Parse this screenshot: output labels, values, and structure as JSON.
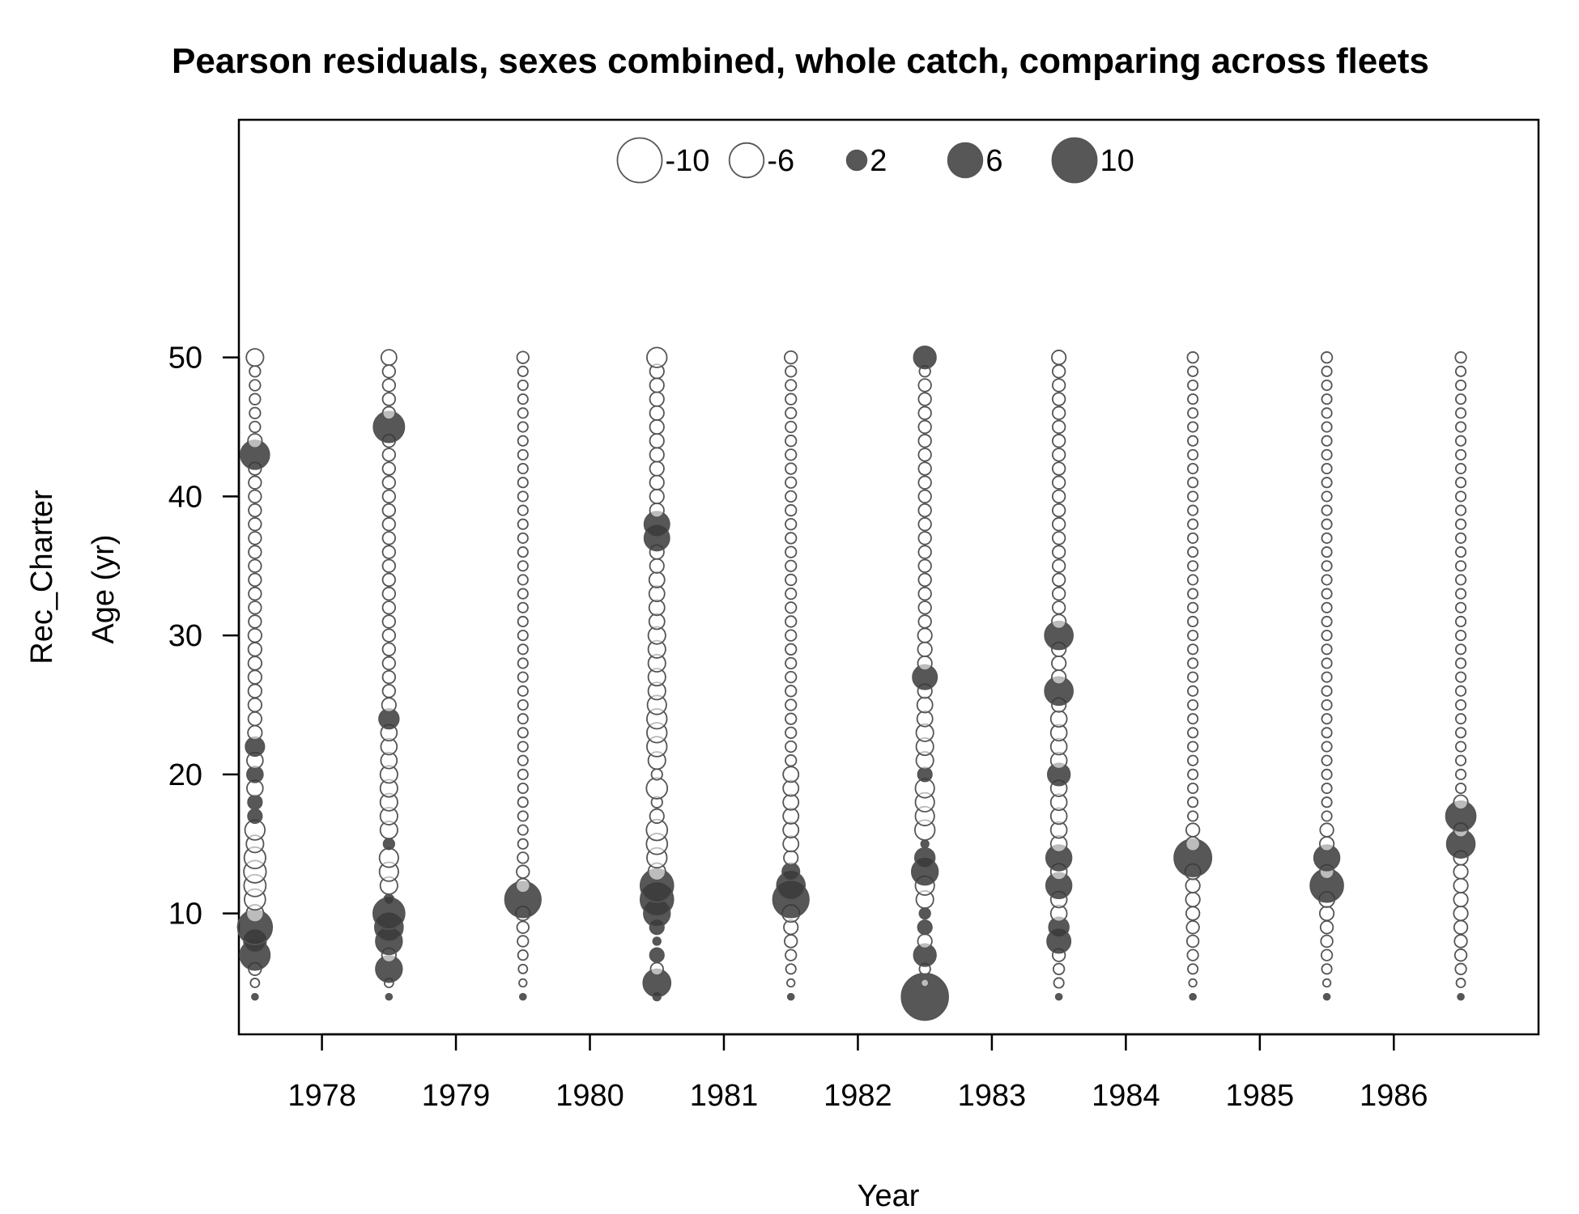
{
  "chart_data": {
    "type": "scatter",
    "subtype": "bubble",
    "title": "Pearson residuals, sexes combined, whole catch, comparing across fleets",
    "xlabel": "Year",
    "ylabel": "Age (yr)",
    "fleet_label": "Rec_Charter",
    "x_ticks": [
      "1978",
      "1979",
      "1980",
      "1981",
      "1982",
      "1983",
      "1984",
      "1985",
      "1986"
    ],
    "y_ticks": [
      "10",
      "20",
      "30",
      "40",
      "50"
    ],
    "xlim": [
      1977.38,
      1987.08
    ],
    "ylim": [
      1.3,
      67.1
    ],
    "grid": false,
    "legend": {
      "placement": "top-center",
      "entries": [
        {
          "value": -10,
          "label": "-10"
        },
        {
          "value": -6,
          "label": "-6"
        },
        {
          "value": 2,
          "label": "2"
        },
        {
          "value": 6,
          "label": "6"
        },
        {
          "value": 10,
          "label": "10"
        }
      ]
    },
    "colors": {
      "positive_fill": "#3a3a3a",
      "positive_alpha": 0.85,
      "negative_fill": "#ffffff",
      "stroke": "#555555"
    },
    "x": [
      1977.5,
      1978.5,
      1979.5,
      1980.5,
      1981.5,
      1982.5,
      1983.5,
      1984.5,
      1985.5,
      1986.5
    ],
    "ages": [
      4,
      50
    ],
    "residuals": [
      {
        "year": 1977.5,
        "default": -0.6,
        "points": [
          [
            4,
            0.2
          ],
          [
            5,
            -0.4
          ],
          [
            6,
            -0.8
          ],
          [
            7,
            4.5
          ],
          [
            8,
            2.5
          ],
          [
            9,
            6.0
          ],
          [
            10,
            -1.5
          ],
          [
            11,
            -2.2
          ],
          [
            12,
            -2.4
          ],
          [
            13,
            -2.5
          ],
          [
            14,
            -2.3
          ],
          [
            15,
            -1.5
          ],
          [
            16,
            -2.0
          ],
          [
            17,
            1.0
          ],
          [
            18,
            1.0
          ],
          [
            19,
            -1.3
          ],
          [
            20,
            1.3
          ],
          [
            21,
            -1.3
          ],
          [
            22,
            1.8
          ],
          [
            23,
            -1.0
          ],
          [
            24,
            -0.9
          ],
          [
            25,
            -0.9
          ],
          [
            26,
            -0.9
          ],
          [
            27,
            -0.9
          ],
          [
            28,
            -0.9
          ],
          [
            29,
            -0.9
          ],
          [
            30,
            -0.9
          ],
          [
            31,
            -0.8
          ],
          [
            32,
            -0.8
          ],
          [
            33,
            -0.8
          ],
          [
            34,
            -0.8
          ],
          [
            35,
            -0.8
          ],
          [
            36,
            -0.8
          ],
          [
            37,
            -0.8
          ],
          [
            38,
            -0.8
          ],
          [
            39,
            -0.8
          ],
          [
            40,
            -0.8
          ],
          [
            41,
            -0.8
          ],
          [
            42,
            -0.8
          ],
          [
            43,
            4.2
          ],
          [
            44,
            -1.0
          ],
          [
            50,
            -1.5
          ]
        ]
      },
      {
        "year": 1978.5,
        "default": -0.8,
        "points": [
          [
            4,
            0.2
          ],
          [
            5,
            -0.4
          ],
          [
            6,
            3.5
          ],
          [
            7,
            -1.0
          ],
          [
            8,
            3.5
          ],
          [
            9,
            4.0
          ],
          [
            10,
            5.0
          ],
          [
            11,
            0.5
          ],
          [
            12,
            -1.5
          ],
          [
            13,
            -1.8
          ],
          [
            14,
            -1.8
          ],
          [
            15,
            0.6
          ],
          [
            16,
            -1.5
          ],
          [
            17,
            -1.5
          ],
          [
            18,
            -1.5
          ],
          [
            19,
            -1.5
          ],
          [
            20,
            -1.5
          ],
          [
            21,
            -1.3
          ],
          [
            22,
            -1.3
          ],
          [
            23,
            -1.3
          ],
          [
            24,
            2.0
          ],
          [
            25,
            -1.0
          ],
          [
            44,
            -0.8
          ],
          [
            45,
            4.8
          ],
          [
            46,
            -0.8
          ],
          [
            50,
            -1.2
          ]
        ]
      },
      {
        "year": 1979.5,
        "default": -0.5,
        "points": [
          [
            4,
            0.2
          ],
          [
            5,
            -0.3
          ],
          [
            6,
            -0.4
          ],
          [
            7,
            -0.5
          ],
          [
            8,
            -0.6
          ],
          [
            9,
            -0.7
          ],
          [
            10,
            -1.0
          ],
          [
            11,
            6.5
          ],
          [
            12,
            -1.0
          ],
          [
            13,
            -0.8
          ],
          [
            14,
            -0.6
          ],
          [
            50,
            -0.7
          ]
        ]
      },
      {
        "year": 1980.5,
        "default": -1.0,
        "points": [
          [
            4,
            0.3
          ],
          [
            5,
            3.8
          ],
          [
            6,
            -0.8
          ],
          [
            7,
            1.0
          ],
          [
            8,
            0.3
          ],
          [
            9,
            1.0
          ],
          [
            10,
            3.5
          ],
          [
            11,
            5.5
          ],
          [
            12,
            5.5
          ],
          [
            13,
            -1.5
          ],
          [
            14,
            -2.0
          ],
          [
            15,
            -2.2
          ],
          [
            16,
            -2.2
          ],
          [
            17,
            -1.0
          ],
          [
            18,
            -0.6
          ],
          [
            19,
            -2.2
          ],
          [
            20,
            -0.6
          ],
          [
            21,
            -1.5
          ],
          [
            22,
            -2.0
          ],
          [
            23,
            -2.0
          ],
          [
            24,
            -2.0
          ],
          [
            25,
            -1.8
          ],
          [
            26,
            -1.5
          ],
          [
            27,
            -1.5
          ],
          [
            28,
            -1.5
          ],
          [
            29,
            -1.5
          ],
          [
            30,
            -1.5
          ],
          [
            31,
            -1.2
          ],
          [
            32,
            -1.2
          ],
          [
            33,
            -1.2
          ],
          [
            34,
            -1.2
          ],
          [
            35,
            -1.0
          ],
          [
            36,
            -1.0
          ],
          [
            37,
            3.2
          ],
          [
            38,
            3.2
          ],
          [
            50,
            -2.0
          ]
        ]
      },
      {
        "year": 1981.5,
        "default": -0.6,
        "points": [
          [
            4,
            0.2
          ],
          [
            5,
            -0.3
          ],
          [
            6,
            -0.5
          ],
          [
            7,
            -0.6
          ],
          [
            8,
            -0.8
          ],
          [
            9,
            -1.0
          ],
          [
            10,
            -1.5
          ],
          [
            11,
            6.5
          ],
          [
            12,
            4.0
          ],
          [
            13,
            1.5
          ],
          [
            14,
            -1.0
          ],
          [
            15,
            -1.2
          ],
          [
            16,
            -1.2
          ],
          [
            17,
            -1.2
          ],
          [
            18,
            -1.2
          ],
          [
            19,
            -1.2
          ],
          [
            20,
            -1.2
          ],
          [
            50,
            -0.8
          ]
        ]
      },
      {
        "year": 1982.5,
        "default": -0.8,
        "points": [
          [
            4,
            11.0
          ],
          [
            5,
            -0.3
          ],
          [
            6,
            -0.6
          ],
          [
            7,
            2.5
          ],
          [
            8,
            -1.0
          ],
          [
            9,
            1.0
          ],
          [
            10,
            0.6
          ],
          [
            11,
            -1.5
          ],
          [
            12,
            -1.8
          ],
          [
            13,
            3.5
          ],
          [
            14,
            2.0
          ],
          [
            15,
            0.3
          ],
          [
            16,
            -2.0
          ],
          [
            17,
            -1.8
          ],
          [
            18,
            -1.8
          ],
          [
            19,
            -1.8
          ],
          [
            20,
            1.0
          ],
          [
            21,
            -1.5
          ],
          [
            22,
            -1.5
          ],
          [
            23,
            -1.5
          ],
          [
            24,
            -1.2
          ],
          [
            25,
            -1.2
          ],
          [
            26,
            -1.0
          ],
          [
            27,
            3.0
          ],
          [
            28,
            -1.0
          ],
          [
            29,
            -1.0
          ],
          [
            30,
            -1.0
          ],
          [
            49,
            -0.6
          ],
          [
            50,
            2.5
          ]
        ]
      },
      {
        "year": 1983.5,
        "default": -0.8,
        "points": [
          [
            4,
            0.2
          ],
          [
            5,
            -0.5
          ],
          [
            6,
            -0.6
          ],
          [
            7,
            -0.8
          ],
          [
            8,
            2.8
          ],
          [
            9,
            2.0
          ],
          [
            10,
            -1.3
          ],
          [
            11,
            -1.3
          ],
          [
            12,
            3.3
          ],
          [
            13,
            -1.3
          ],
          [
            14,
            3.3
          ],
          [
            15,
            -1.3
          ],
          [
            16,
            -1.3
          ],
          [
            17,
            -1.3
          ],
          [
            18,
            -1.3
          ],
          [
            19,
            -1.3
          ],
          [
            20,
            2.5
          ],
          [
            21,
            -1.3
          ],
          [
            22,
            -1.3
          ],
          [
            23,
            -1.3
          ],
          [
            24,
            -1.3
          ],
          [
            25,
            -1.0
          ],
          [
            26,
            4.0
          ],
          [
            27,
            -1.0
          ],
          [
            28,
            -1.0
          ],
          [
            29,
            -1.0
          ],
          [
            30,
            4.0
          ],
          [
            31,
            -1.0
          ],
          [
            50,
            -1.0
          ]
        ]
      },
      {
        "year": 1984.5,
        "default": -0.5,
        "points": [
          [
            4,
            0.2
          ],
          [
            5,
            -0.3
          ],
          [
            6,
            -0.5
          ],
          [
            7,
            -0.6
          ],
          [
            8,
            -0.7
          ],
          [
            9,
            -0.8
          ],
          [
            10,
            -0.9
          ],
          [
            11,
            -1.0
          ],
          [
            12,
            -1.0
          ],
          [
            13,
            -1.2
          ],
          [
            14,
            7.0
          ],
          [
            15,
            -1.0
          ],
          [
            16,
            -0.9
          ],
          [
            50,
            -0.6
          ]
        ]
      },
      {
        "year": 1985.5,
        "default": -0.5,
        "points": [
          [
            4,
            0.2
          ],
          [
            5,
            -0.3
          ],
          [
            6,
            -0.5
          ],
          [
            7,
            -0.6
          ],
          [
            8,
            -0.7
          ],
          [
            9,
            -0.8
          ],
          [
            10,
            -1.0
          ],
          [
            11,
            -1.2
          ],
          [
            12,
            5.5
          ],
          [
            13,
            -1.0
          ],
          [
            14,
            3.3
          ],
          [
            15,
            -1.0
          ],
          [
            16,
            -0.9
          ],
          [
            50,
            -0.6
          ]
        ]
      },
      {
        "year": 1986.5,
        "default": -0.5,
        "points": [
          [
            4,
            0.2
          ],
          [
            5,
            -0.4
          ],
          [
            6,
            -0.6
          ],
          [
            7,
            -0.7
          ],
          [
            8,
            -0.8
          ],
          [
            9,
            -0.9
          ],
          [
            10,
            -1.0
          ],
          [
            11,
            -1.0
          ],
          [
            12,
            -1.0
          ],
          [
            13,
            -1.0
          ],
          [
            14,
            -1.0
          ],
          [
            15,
            4.0
          ],
          [
            16,
            -1.0
          ],
          [
            17,
            4.5
          ],
          [
            18,
            -1.0
          ],
          [
            50,
            -0.6
          ]
        ]
      }
    ]
  }
}
